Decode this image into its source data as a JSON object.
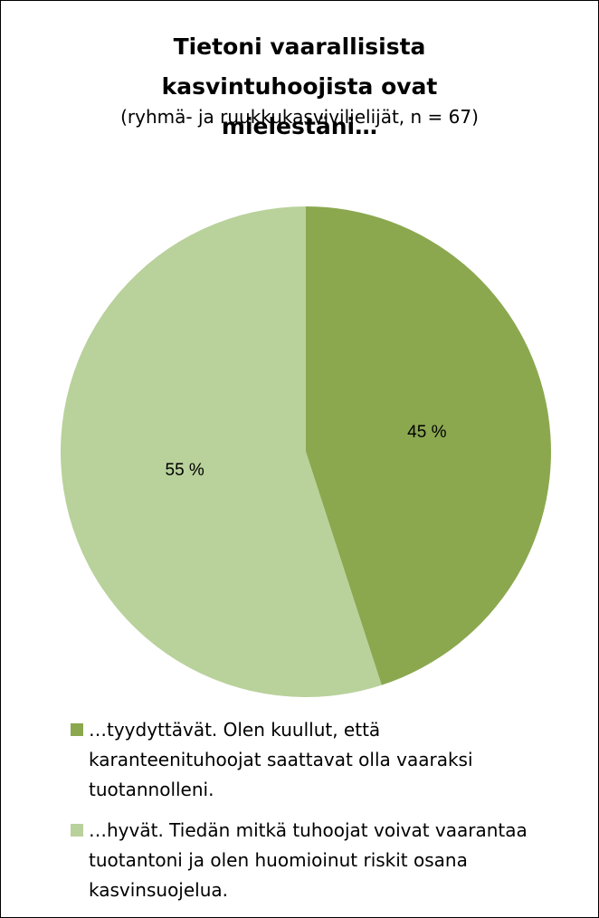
{
  "chart_data": {
    "type": "pie",
    "title": "Tietoni vaarallisista kasvintuhoojista ovat mielestäni…",
    "subtitle": "(ryhmä- ja ruukkukasviviljelijät, n = 67)",
    "categories": [
      "…tyydyttävät. Olen kuullut, että karanteenituhoojat saattavat olla vaaraksi tuotannolleni.",
      "…hyvät. Tiedän mitkä tuhoojat voivat vaarantaa tuotantoni ja olen huomioinut riskit osana kasvinsuojelua."
    ],
    "values": [
      45,
      55
    ],
    "value_labels": [
      "45 %",
      "55 %"
    ],
    "colors": [
      "#8ba84f",
      "#b9d19b"
    ],
    "legend": "bottom"
  }
}
